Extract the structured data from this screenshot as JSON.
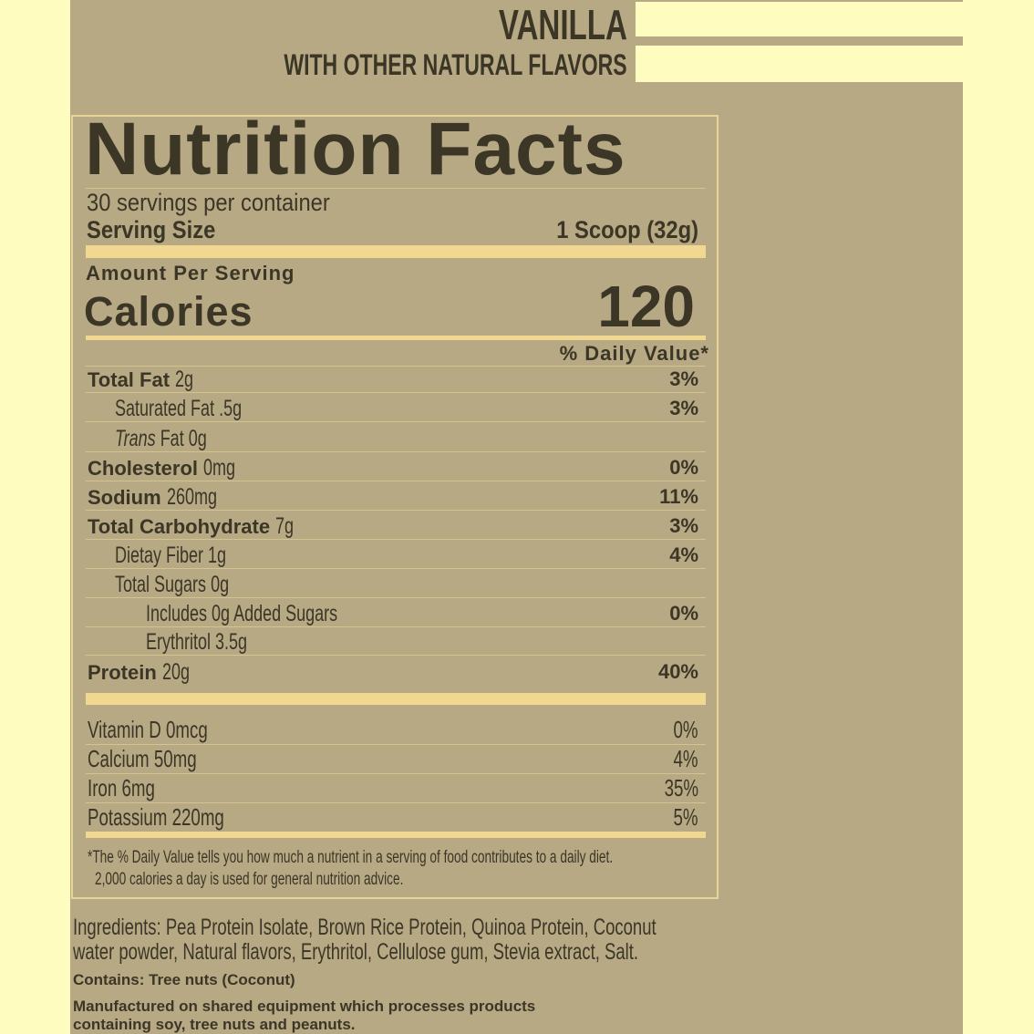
{
  "header": {
    "flavor": "VANILLA",
    "subtitle": "WITH OTHER NATURAL FLAVORS"
  },
  "label": {
    "title": "Nutrition Facts",
    "servings_per_container": "30 servings per container",
    "serving_size_label": "Serving Size",
    "serving_size_value": "1 Scoop (32g)",
    "amount_per_serving": "Amount Per Serving",
    "calories_label": "Calories",
    "calories_value": "120",
    "daily_value_header": "% Daily Value*",
    "nutrients": [
      {
        "name": "Total Fat",
        "amount": "2g",
        "dv": "3%",
        "bold": true,
        "indent": 0
      },
      {
        "name": "Saturated Fat",
        "amount": ".5g",
        "dv": "3%",
        "bold": false,
        "indent": 1
      },
      {
        "name": "Trans",
        "amount": "Fat 0g",
        "dv": "",
        "bold": false,
        "indent": 1
      },
      {
        "name": "Cholesterol",
        "amount": "0mg",
        "dv": "0%",
        "bold": true,
        "indent": 0
      },
      {
        "name": "Sodium",
        "amount": "260mg",
        "dv": "11%",
        "bold": true,
        "indent": 0
      },
      {
        "name": "Total Carbohydrate",
        "amount": "7g",
        "dv": "3%",
        "bold": true,
        "indent": 0
      },
      {
        "name": "Dietay Fiber",
        "amount": "1g",
        "dv": "4%",
        "bold": false,
        "indent": 1
      },
      {
        "name": "Total Sugars",
        "amount": "0g",
        "dv": "",
        "bold": false,
        "indent": 1
      },
      {
        "name": "Includes 0g Added Sugars",
        "amount": "",
        "dv": "0%",
        "bold": false,
        "indent": 2
      },
      {
        "name": "Erythritol",
        "amount": "3.5g",
        "dv": "",
        "bold": false,
        "indent": 2
      },
      {
        "name": "Protein",
        "amount": "20g",
        "dv": "40%",
        "bold": true,
        "indent": 0
      }
    ],
    "vitamins": [
      {
        "name": "Vitamin D 0mcg",
        "dv": "0%"
      },
      {
        "name": "Calcium 50mg",
        "dv": "4%"
      },
      {
        "name": "Iron 6mg",
        "dv": "35%"
      },
      {
        "name": "Potassium 220mg",
        "dv": "5%"
      }
    ],
    "footnote_line1": "*The % Daily Value tells you how much a nutrient in a serving of food contributes to a daily diet.",
    "footnote_line2": "2,000 calories a day is used for general nutrition advice."
  },
  "ingredients_line1": "Ingredients: Pea Protein Isolate, Brown Rice Protein, Quinoa Protein, Coconut",
  "ingredients_line2": "water powder, Natural flavors, Erythritol, Cellulose gum, Stevia extract, Salt.",
  "contains": "Contains: Tree nuts (Coconut)",
  "manufactured_line1": "Manufactured on shared equipment which processes products",
  "manufactured_line2": "containing soy, tree nuts and peanuts.",
  "colors": {
    "background": "#fffcc0",
    "label": "#b8a985",
    "text": "#3b3626",
    "bar": "#f0d890"
  }
}
